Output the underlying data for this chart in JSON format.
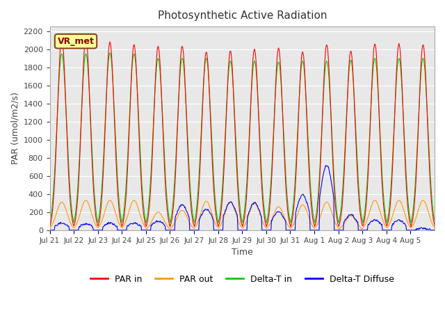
{
  "title": "Photosynthetic Active Radiation",
  "ylabel": "PAR (umol/m2/s)",
  "xlabel": "Time",
  "station_label": "VR_met",
  "ylim": [
    0,
    2250
  ],
  "yticks": [
    0,
    200,
    400,
    600,
    800,
    1000,
    1200,
    1400,
    1600,
    1800,
    2000,
    2200
  ],
  "x_tick_labels": [
    "Jul 21",
    "Jul 22",
    "Jul 23",
    "Jul 24",
    "Jul 25",
    "Jul 26",
    "Jul 27",
    "Jul 28",
    "Jul 29",
    "Jul 30",
    "Jul 31",
    "Aug 1",
    "Aug 2",
    "Aug 3",
    "Aug 4",
    "Aug 5"
  ],
  "n_days": 16,
  "colors": {
    "PAR_in": "#ff0000",
    "PAR_out": "#ff9900",
    "Delta_T_in": "#00cc00",
    "Delta_T_Diffuse": "#0000ff"
  },
  "legend_labels": [
    "PAR in",
    "PAR out",
    "Delta-T in",
    "Delta-T Diffuse"
  ],
  "bg_color": "#e8e8e8",
  "grid_color": "#ffffff",
  "station_box_color": "#ffff99",
  "station_box_edge": "#8B4513"
}
